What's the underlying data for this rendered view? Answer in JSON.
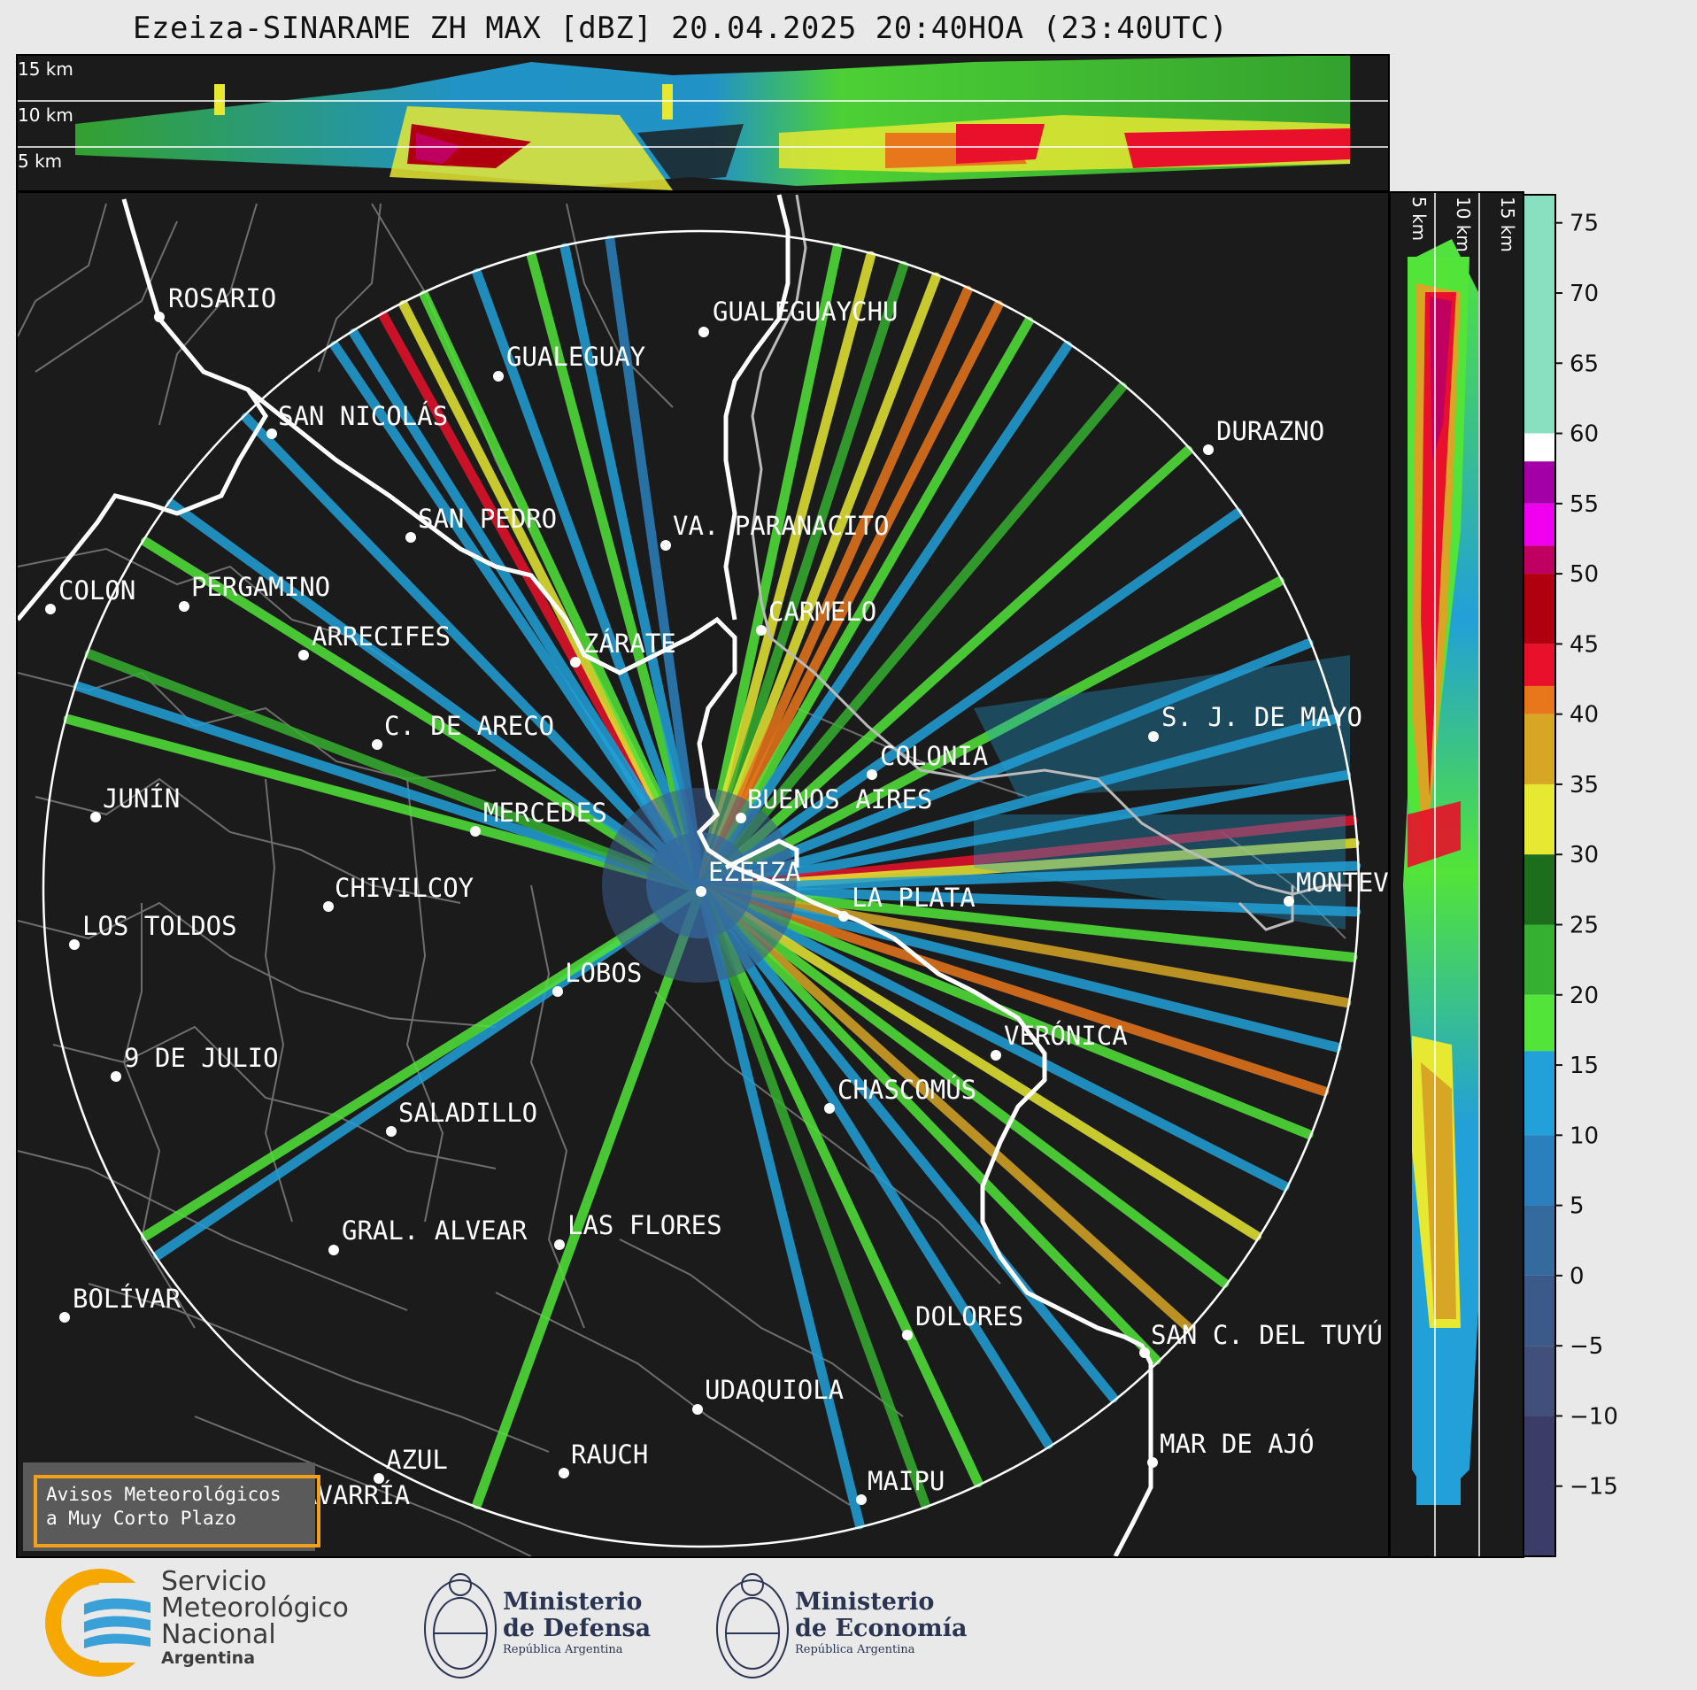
{
  "title": "Ezeiza-SINARAME ZH MAX [dBZ] 20.04.2025 20:40HOA (23:40UTC)",
  "altitude_labels": {
    "top": [
      "15 km",
      "10 km",
      "5 km"
    ],
    "side": [
      "5 km",
      "10 km",
      "15 km"
    ]
  },
  "colorbar": {
    "unit": "dBZ",
    "ticks": [
      "75",
      "70",
      "65",
      "60",
      "55",
      "50",
      "45",
      "40",
      "35",
      "30",
      "25",
      "20",
      "15",
      "10",
      "5",
      "0",
      "−5",
      "−10",
      "−15"
    ],
    "tick_values": [
      75,
      70,
      65,
      60,
      55,
      50,
      45,
      40,
      35,
      30,
      25,
      20,
      15,
      10,
      5,
      0,
      -5,
      -10,
      -15
    ],
    "range": [
      -20,
      77
    ],
    "bands": [
      {
        "from": 60,
        "to": 77,
        "color": "#88e0c0"
      },
      {
        "from": 58,
        "to": 60,
        "color": "#ffffff"
      },
      {
        "from": 55,
        "to": 58,
        "color": "#a300a8"
      },
      {
        "from": 52,
        "to": 55,
        "color": "#ee00ee"
      },
      {
        "from": 50,
        "to": 52,
        "color": "#c00060"
      },
      {
        "from": 45,
        "to": 50,
        "color": "#b00010"
      },
      {
        "from": 42,
        "to": 45,
        "color": "#e8102a"
      },
      {
        "from": 40,
        "to": 42,
        "color": "#e8761a"
      },
      {
        "from": 35,
        "to": 40,
        "color": "#d6a624"
      },
      {
        "from": 30,
        "to": 35,
        "color": "#e6e832"
      },
      {
        "from": 25,
        "to": 30,
        "color": "#1c6e1c"
      },
      {
        "from": 20,
        "to": 25,
        "color": "#36b030"
      },
      {
        "from": 16,
        "to": 20,
        "color": "#52e438"
      },
      {
        "from": 10,
        "to": 16,
        "color": "#22a0d8"
      },
      {
        "from": 5,
        "to": 10,
        "color": "#2a80bc"
      },
      {
        "from": 0,
        "to": 5,
        "color": "#356a9e"
      },
      {
        "from": -5,
        "to": 0,
        "color": "#3b5a8a"
      },
      {
        "from": -10,
        "to": -5,
        "color": "#40507a"
      },
      {
        "from": -20,
        "to": -10,
        "color": "#3c3c68"
      }
    ]
  },
  "cities": [
    {
      "name": "ROSARIO"
    },
    {
      "name": "GUALEGUAYCHU"
    },
    {
      "name": "GUALEGUAY"
    },
    {
      "name": "SAN NICOLÁS"
    },
    {
      "name": "DURAZNO"
    },
    {
      "name": "SAN PEDRO"
    },
    {
      "name": "VA. PARANACITO"
    },
    {
      "name": "COLON"
    },
    {
      "name": "PERGAMINO"
    },
    {
      "name": "CARMELO"
    },
    {
      "name": "ARRECIFES"
    },
    {
      "name": "ZÁRATE"
    },
    {
      "name": "C. DE ARECO"
    },
    {
      "name": "S. J. DE MAYO"
    },
    {
      "name": "COLONIA"
    },
    {
      "name": "JUNÍN"
    },
    {
      "name": "BUENOS AIRES"
    },
    {
      "name": "MERCEDES"
    },
    {
      "name": "EZEIZA"
    },
    {
      "name": "MONTEVIDEO"
    },
    {
      "name": "CHIVILCOY"
    },
    {
      "name": "LA PLATA"
    },
    {
      "name": "LOS TOLDOS"
    },
    {
      "name": "LOBOS"
    },
    {
      "name": "VERÓNICA"
    },
    {
      "name": "9 DE JULIO"
    },
    {
      "name": "CHASCOMÚS"
    },
    {
      "name": "SALADILLO"
    },
    {
      "name": "GRAL. ALVEAR"
    },
    {
      "name": "LAS FLORES"
    },
    {
      "name": "BOLÍVAR"
    },
    {
      "name": "DOLORES"
    },
    {
      "name": "SAN C. DEL TUYÚ"
    },
    {
      "name": "UDAQUIOLA"
    },
    {
      "name": "MAR DE AJÓ"
    },
    {
      "name": "RAUCH"
    },
    {
      "name": "AZUL"
    },
    {
      "name": "OLAVARRÍA"
    },
    {
      "name": "MAIPU"
    }
  ],
  "warning_box": {
    "line1": "Avisos Meteorológicos",
    "line2": "a Muy Corto Plazo",
    "border_color": "#f2a01c"
  },
  "logos": {
    "smn": {
      "line1": "Servicio",
      "line2": "Meteorológico",
      "line3": "Nacional",
      "line4": "Argentina"
    },
    "defensa": {
      "line1": "Ministerio",
      "line2": "de Defensa",
      "line3": "República Argentina"
    },
    "economia": {
      "line1": "Ministerio",
      "line2": "de Economía",
      "line3": "República Argentina"
    }
  },
  "rays": [
    {
      "az": 331,
      "color": "#e8102a"
    },
    {
      "az": 333,
      "color": "#e6e832"
    },
    {
      "az": 335,
      "color": "#52e438"
    },
    {
      "az": 328,
      "color": "#22a0d8"
    },
    {
      "az": 326,
      "color": "#22a0d8"
    },
    {
      "az": 340,
      "color": "#22a0d8"
    },
    {
      "az": 345,
      "color": "#52e438"
    },
    {
      "az": 348,
      "color": "#22a0d8"
    },
    {
      "az": 352,
      "color": "#2a80bc"
    },
    {
      "az": 12,
      "color": "#52e438"
    },
    {
      "az": 15,
      "color": "#e6e832"
    },
    {
      "az": 18,
      "color": "#36b030"
    },
    {
      "az": 21,
      "color": "#e6e832"
    },
    {
      "az": 24,
      "color": "#e8761a"
    },
    {
      "az": 27,
      "color": "#e8761a"
    },
    {
      "az": 30,
      "color": "#52e438"
    },
    {
      "az": 34,
      "color": "#22a0d8"
    },
    {
      "az": 40,
      "color": "#36b030"
    },
    {
      "az": 48,
      "color": "#52e438"
    },
    {
      "az": 55,
      "color": "#22a0d8"
    },
    {
      "az": 62,
      "color": "#52e438"
    },
    {
      "az": 68,
      "color": "#22a0d8"
    },
    {
      "az": 75,
      "color": "#22a0d8"
    },
    {
      "az": 80,
      "color": "#22a0d8"
    },
    {
      "az": 84,
      "color": "#e8102a"
    },
    {
      "az": 86,
      "color": "#e6e832"
    },
    {
      "az": 88,
      "color": "#22a0d8"
    },
    {
      "az": 92,
      "color": "#22a0d8"
    },
    {
      "az": 96,
      "color": "#52e438"
    },
    {
      "az": 100,
      "color": "#d6a624"
    },
    {
      "az": 104,
      "color": "#22a0d8"
    },
    {
      "az": 108,
      "color": "#e8761a"
    },
    {
      "az": 112,
      "color": "#52e438"
    },
    {
      "az": 117,
      "color": "#22a0d8"
    },
    {
      "az": 122,
      "color": "#e6e832"
    },
    {
      "az": 127,
      "color": "#52e438"
    },
    {
      "az": 132,
      "color": "#d6a624"
    },
    {
      "az": 136,
      "color": "#52e438"
    },
    {
      "az": 141,
      "color": "#22a0d8"
    },
    {
      "az": 148,
      "color": "#22a0d8"
    },
    {
      "az": 155,
      "color": "#52e438"
    },
    {
      "az": 160,
      "color": "#36b030"
    },
    {
      "az": 166,
      "color": "#22a0d8"
    },
    {
      "az": 200,
      "color": "#52e438"
    },
    {
      "az": 236,
      "color": "#22a0d8"
    },
    {
      "az": 238,
      "color": "#52e438"
    },
    {
      "az": 285,
      "color": "#52e438"
    },
    {
      "az": 288,
      "color": "#22a0d8"
    },
    {
      "az": 291,
      "color": "#36b030"
    },
    {
      "az": 302,
      "color": "#52e438"
    },
    {
      "az": 306,
      "color": "#22a0d8"
    },
    {
      "az": 316,
      "color": "#22a0d8"
    }
  ]
}
